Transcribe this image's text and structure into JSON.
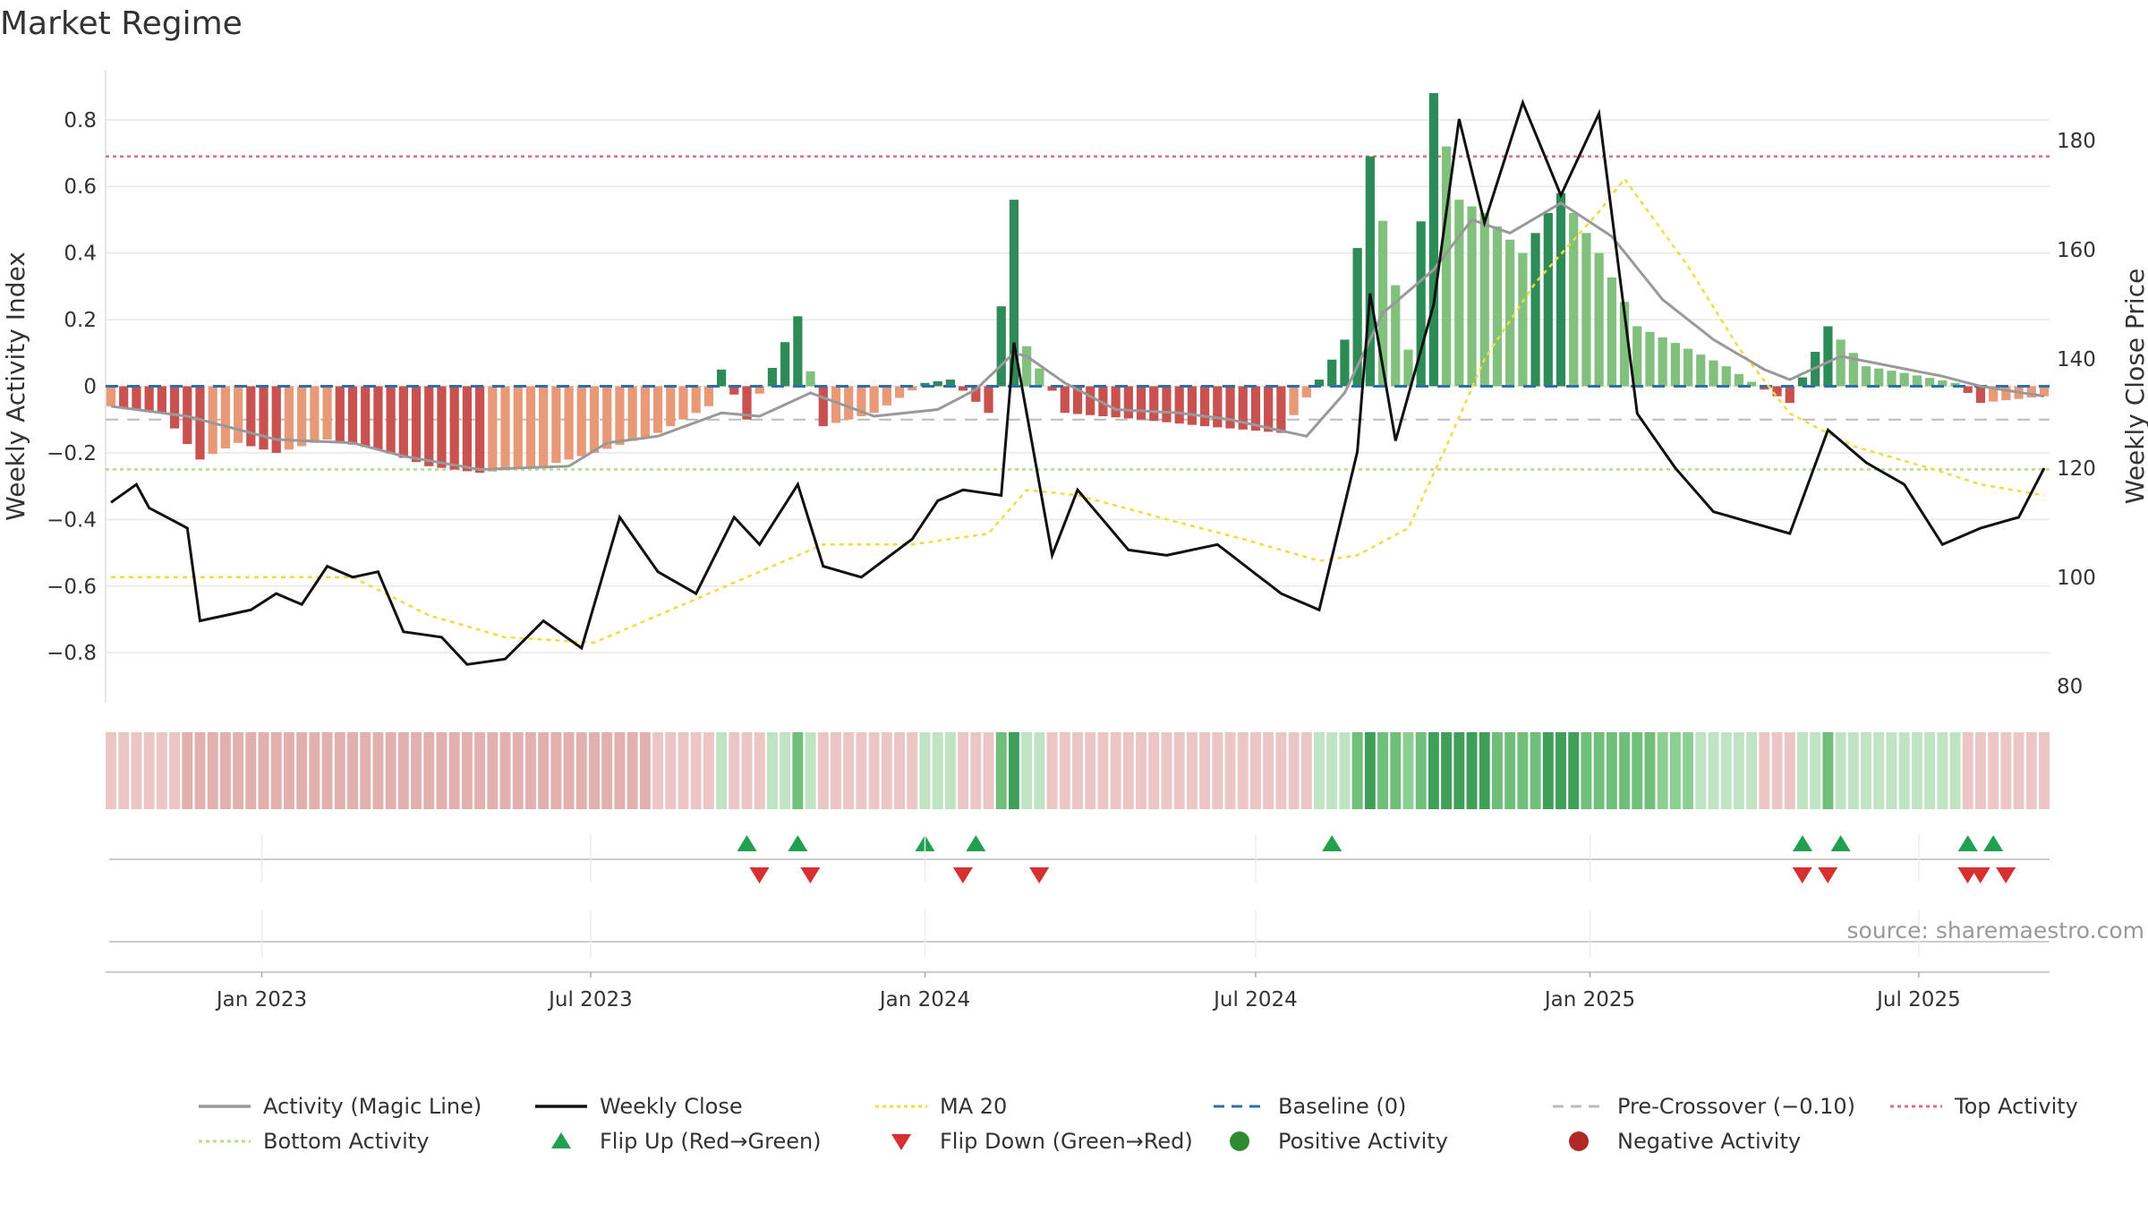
{
  "title": "Market Regime",
  "source": "source: sharemaestro.com",
  "colors": {
    "green_dark": "#2e8b57",
    "green_light": "#82c07e",
    "red_dark": "#c85250",
    "red_light": "#e89a78",
    "magic": "#999999",
    "close": "#111111",
    "ma20": "#f0dc3c",
    "baseline": "#2f6fa8",
    "precross": "#bbbbbb",
    "top": "#e06c88",
    "bottom": "#b5dc86",
    "flip_up": "#22a050",
    "flip_down": "#d63030"
  },
  "legend": [
    {
      "label": "Activity (Magic Line)",
      "kind": "line",
      "color": "#999999",
      "dash": ""
    },
    {
      "label": "Weekly Close",
      "kind": "line",
      "color": "#111111",
      "dash": ""
    },
    {
      "label": "MA 20",
      "kind": "line",
      "color": "#f0dc3c",
      "dash": "4,4"
    },
    {
      "label": "Baseline (0)",
      "kind": "line",
      "color": "#2f6fa8",
      "dash": "12,8"
    },
    {
      "label": "Pre-Crossover (−0.10)",
      "kind": "line",
      "color": "#bbbbbb",
      "dash": "12,8"
    },
    {
      "label": "Top Activity",
      "kind": "line",
      "color": "#e06c88",
      "dash": "4,4"
    },
    {
      "label": "Bottom Activity",
      "kind": "line",
      "color": "#b5dc86",
      "dash": "4,4"
    },
    {
      "label": "Flip Up (Red→Green)",
      "kind": "tri-up",
      "color": "#22a050"
    },
    {
      "label": "Flip Down (Green→Red)",
      "kind": "tri-down",
      "color": "#d63030"
    },
    {
      "label": "Positive Activity",
      "kind": "dot",
      "color": "#2e8b30"
    },
    {
      "label": "Negative Activity",
      "kind": "dot",
      "color": "#b02828"
    }
  ],
  "chart_data": {
    "type": "bar",
    "title": "Market Regime",
    "ylabel": "Weekly Activity Index",
    "y2label": "Weekly Close Price",
    "ylim": [
      -0.95,
      0.95
    ],
    "y2lim": [
      77,
      193
    ],
    "yticks": [
      -0.8,
      -0.6,
      -0.4,
      -0.2,
      0,
      0.2,
      0.4,
      0.6,
      0.8
    ],
    "ytick_labels": [
      "−0.8",
      "−0.6",
      "−0.4",
      "−0.2",
      "0",
      "0.2",
      "0.4",
      "0.6",
      "0.8"
    ],
    "y2ticks": [
      80,
      100,
      120,
      140,
      160,
      180
    ],
    "y2tick_labels": [
      "80",
      "100",
      "120",
      "140",
      "160",
      "180"
    ],
    "x_start": "2022-10-10",
    "x_end": "2025-09-08",
    "xticks": [
      "2023-01-01",
      "2023-07-01",
      "2024-01-01",
      "2024-07-01",
      "2025-01-01",
      "2025-07-01"
    ],
    "xtick_labels": [
      "Jan 2023",
      "Jul 2023",
      "Jan 2024",
      "Jul 2024",
      "Jan 2025",
      "Jul 2025"
    ],
    "reference_lines": {
      "baseline": 0,
      "pre_crossover": -0.1,
      "top_activity": 0.69,
      "bottom_activity": -0.25
    },
    "grid": true,
    "legend_position": "bottom",
    "anchors": {
      "activity": [
        [
          "2022-10-10",
          -0.06
        ],
        [
          "2022-11-07",
          -0.08
        ],
        [
          "2022-11-28",
          -0.22
        ],
        [
          "2022-12-19",
          -0.17
        ],
        [
          "2023-01-09",
          -0.2
        ],
        [
          "2023-02-06",
          -0.16
        ],
        [
          "2023-03-06",
          -0.19
        ],
        [
          "2023-04-03",
          -0.24
        ],
        [
          "2023-05-01",
          -0.26
        ],
        [
          "2023-06-05",
          -0.24
        ],
        [
          "2023-07-03",
          -0.2
        ],
        [
          "2023-08-07",
          -0.14
        ],
        [
          "2023-09-04",
          -0.06
        ],
        [
          "2023-09-11",
          0.05
        ],
        [
          "2023-09-25",
          -0.1
        ],
        [
          "2023-10-23",
          0.21
        ],
        [
          "2023-11-06",
          -0.12
        ],
        [
          "2023-12-04",
          -0.08
        ],
        [
          "2024-01-01",
          0.01
        ],
        [
          "2024-01-15",
          0.02
        ],
        [
          "2024-02-05",
          -0.08
        ],
        [
          "2024-02-19",
          0.56
        ],
        [
          "2024-02-26",
          0.12
        ],
        [
          "2024-03-18",
          -0.08
        ],
        [
          "2024-04-29",
          -0.1
        ],
        [
          "2024-06-03",
          -0.12
        ],
        [
          "2024-07-15",
          -0.14
        ],
        [
          "2024-08-05",
          0.02
        ],
        [
          "2024-08-19",
          0.14
        ],
        [
          "2024-09-02",
          0.69
        ],
        [
          "2024-09-23",
          0.11
        ],
        [
          "2024-10-07",
          0.88
        ],
        [
          "2024-10-21",
          0.56
        ],
        [
          "2024-11-04",
          0.52
        ],
        [
          "2024-11-25",
          0.4
        ],
        [
          "2024-12-16",
          0.58
        ],
        [
          "2025-01-06",
          0.4
        ],
        [
          "2025-01-27",
          0.18
        ],
        [
          "2025-02-17",
          0.13
        ],
        [
          "2025-03-17",
          0.06
        ],
        [
          "2025-04-07",
          -0.01
        ],
        [
          "2025-04-21",
          -0.05
        ],
        [
          "2025-05-12",
          0.18
        ],
        [
          "2025-06-02",
          0.06
        ],
        [
          "2025-06-23",
          0.04
        ],
        [
          "2025-07-21",
          0.01
        ],
        [
          "2025-08-04",
          -0.05
        ],
        [
          "2025-09-08",
          -0.03
        ]
      ],
      "magic": [
        [
          "2022-10-10",
          -0.06
        ],
        [
          "2022-11-21",
          -0.09
        ],
        [
          "2023-01-09",
          -0.16
        ],
        [
          "2023-02-20",
          -0.17
        ],
        [
          "2023-03-20",
          -0.21
        ],
        [
          "2023-05-01",
          -0.25
        ],
        [
          "2023-06-19",
          -0.24
        ],
        [
          "2023-07-10",
          -0.17
        ],
        [
          "2023-08-07",
          -0.15
        ],
        [
          "2023-09-11",
          -0.08
        ],
        [
          "2023-10-02",
          -0.09
        ],
        [
          "2023-10-30",
          -0.02
        ],
        [
          "2023-12-04",
          -0.09
        ],
        [
          "2024-01-08",
          -0.07
        ],
        [
          "2024-01-29",
          -0.01
        ],
        [
          "2024-02-19",
          0.1
        ],
        [
          "2024-02-26",
          0.09
        ],
        [
          "2024-03-18",
          0.01
        ],
        [
          "2024-04-15",
          -0.07
        ],
        [
          "2024-05-20",
          -0.08
        ],
        [
          "2024-06-17",
          -0.1
        ],
        [
          "2024-07-29",
          -0.15
        ],
        [
          "2024-08-19",
          -0.02
        ],
        [
          "2024-09-09",
          0.22
        ],
        [
          "2024-10-07",
          0.35
        ],
        [
          "2024-10-28",
          0.5
        ],
        [
          "2024-11-18",
          0.46
        ],
        [
          "2024-12-16",
          0.55
        ],
        [
          "2025-01-13",
          0.45
        ],
        [
          "2025-02-10",
          0.26
        ],
        [
          "2025-03-10",
          0.14
        ],
        [
          "2025-04-07",
          0.05
        ],
        [
          "2025-04-21",
          0.02
        ],
        [
          "2025-05-19",
          0.09
        ],
        [
          "2025-06-16",
          0.06
        ],
        [
          "2025-07-14",
          0.03
        ],
        [
          "2025-08-04",
          0.0
        ],
        [
          "2025-09-08",
          -0.03
        ]
      ],
      "close": [
        [
          "2022-10-10",
          113.7
        ],
        [
          "2022-10-24",
          117
        ],
        [
          "2022-10-31",
          112.7
        ],
        [
          "2022-11-21",
          109
        ],
        [
          "2022-11-28",
          92
        ],
        [
          "2022-12-26",
          94
        ],
        [
          "2023-01-09",
          97
        ],
        [
          "2023-01-23",
          95
        ],
        [
          "2023-02-06",
          102
        ],
        [
          "2023-02-20",
          100
        ],
        [
          "2023-03-06",
          101
        ],
        [
          "2023-03-20",
          90
        ],
        [
          "2023-04-10",
          89
        ],
        [
          "2023-04-24",
          84
        ],
        [
          "2023-05-15",
          85
        ],
        [
          "2023-06-05",
          92
        ],
        [
          "2023-06-26",
          87
        ],
        [
          "2023-07-17",
          111
        ],
        [
          "2023-08-07",
          101
        ],
        [
          "2023-08-28",
          97
        ],
        [
          "2023-09-18",
          111
        ],
        [
          "2023-10-02",
          106
        ],
        [
          "2023-10-23",
          117
        ],
        [
          "2023-11-06",
          102
        ],
        [
          "2023-11-27",
          100
        ],
        [
          "2023-12-25",
          107
        ],
        [
          "2024-01-08",
          114
        ],
        [
          "2024-01-22",
          116
        ],
        [
          "2024-02-12",
          115
        ],
        [
          "2024-02-19",
          143
        ],
        [
          "2024-03-11",
          104
        ],
        [
          "2024-03-25",
          116
        ],
        [
          "2024-04-22",
          105
        ],
        [
          "2024-05-13",
          104
        ],
        [
          "2024-06-10",
          106
        ],
        [
          "2024-07-15",
          97
        ],
        [
          "2024-08-05",
          94
        ],
        [
          "2024-08-26",
          123
        ],
        [
          "2024-09-02",
          152
        ],
        [
          "2024-09-16",
          125
        ],
        [
          "2024-10-07",
          150
        ],
        [
          "2024-10-21",
          184
        ],
        [
          "2024-11-04",
          165
        ],
        [
          "2024-11-25",
          187
        ],
        [
          "2024-12-16",
          170
        ],
        [
          "2025-01-06",
          185
        ],
        [
          "2025-01-27",
          130
        ],
        [
          "2025-02-17",
          120
        ],
        [
          "2025-03-10",
          112
        ],
        [
          "2025-04-21",
          108
        ],
        [
          "2025-05-12",
          127
        ],
        [
          "2025-06-02",
          121
        ],
        [
          "2025-06-23",
          117
        ],
        [
          "2025-07-14",
          106
        ],
        [
          "2025-08-04",
          109
        ],
        [
          "2025-08-25",
          111
        ],
        [
          "2025-09-08",
          120
        ]
      ],
      "ma20": [
        [
          "2022-10-10",
          100
        ],
        [
          "2023-01-01",
          100
        ],
        [
          "2023-02-20",
          100
        ],
        [
          "2023-04-03",
          93
        ],
        [
          "2023-05-15",
          89
        ],
        [
          "2023-07-03",
          88
        ],
        [
          "2023-08-14",
          94
        ],
        [
          "2023-10-02",
          101
        ],
        [
          "2023-11-06",
          106
        ],
        [
          "2023-12-25",
          106
        ],
        [
          "2024-02-05",
          108
        ],
        [
          "2024-02-26",
          116
        ],
        [
          "2024-03-25",
          115
        ],
        [
          "2024-05-20",
          110
        ],
        [
          "2024-06-24",
          107
        ],
        [
          "2024-08-05",
          103
        ],
        [
          "2024-08-26",
          104
        ],
        [
          "2024-09-23",
          109
        ],
        [
          "2024-10-14",
          124
        ],
        [
          "2024-11-04",
          140
        ],
        [
          "2024-12-02",
          154
        ],
        [
          "2025-01-06",
          167
        ],
        [
          "2025-01-20",
          173
        ],
        [
          "2025-02-24",
          157
        ],
        [
          "2025-03-24",
          142
        ],
        [
          "2025-04-21",
          130
        ],
        [
          "2025-05-26",
          124
        ],
        [
          "2025-07-07",
          120
        ],
        [
          "2025-08-04",
          117
        ],
        [
          "2025-09-08",
          115
        ]
      ]
    },
    "flip_up": [
      "2023-09-25",
      "2023-10-23",
      "2024-01-01",
      "2024-01-29",
      "2024-08-12",
      "2025-04-28",
      "2025-05-19",
      "2025-07-28",
      "2025-08-11"
    ],
    "flip_down": [
      "2023-09-25",
      "2023-10-23",
      "2024-01-15",
      "2024-02-26",
      "2025-04-21",
      "2025-05-05",
      "2025-07-21",
      "2025-07-28",
      "2025-08-11"
    ],
    "positive_activity_weeks": [],
    "negative_activity_weeks": []
  }
}
